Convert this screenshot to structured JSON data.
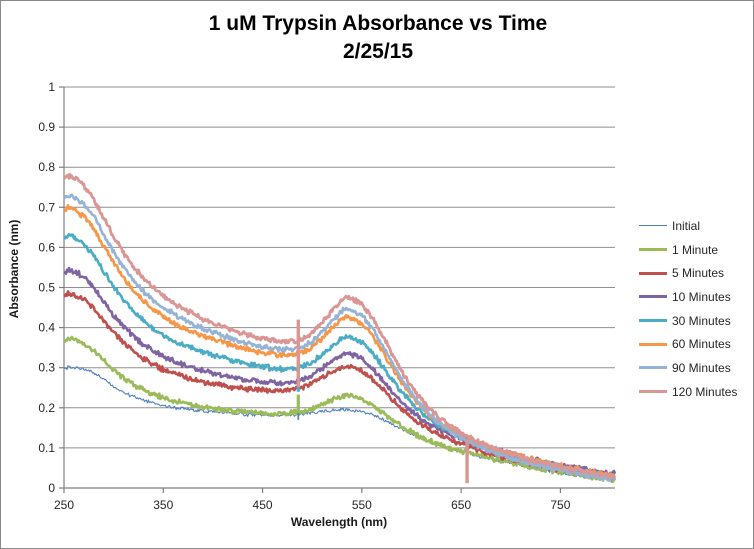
{
  "title": {
    "line1": "1 uM Trypsin Absorbance vs Time",
    "line2": "2/25/15"
  },
  "chart_data": {
    "type": "line",
    "title": "1 uM Trypsin Absorbance vs Time 2/25/15",
    "xlabel": "Wavelength (nm)",
    "ylabel": "Absorbance (nm)",
    "xlim": [
      250,
      805
    ],
    "ylim": [
      0,
      1
    ],
    "grid": "horizontal",
    "legend_position": "right",
    "x_ticks": {
      "values": [
        250,
        350,
        450,
        550,
        650,
        750
      ],
      "labels": [
        "250",
        "350",
        "450",
        "550",
        "650",
        "750"
      ]
    },
    "y_ticks": {
      "values": [
        0,
        0.1,
        0.2,
        0.3,
        0.4,
        0.5,
        0.6,
        0.7,
        0.8,
        0.9,
        1
      ],
      "labels": [
        "0",
        "0.1",
        "0.2",
        "0.3",
        "0.4",
        "0.5",
        "0.6",
        "0.7",
        "0.8",
        "0.9",
        "1"
      ]
    },
    "wavelengths": [
      250,
      255,
      260,
      270,
      280,
      290,
      300,
      310,
      320,
      330,
      340,
      350,
      360,
      370,
      380,
      390,
      400,
      410,
      420,
      430,
      440,
      450,
      460,
      470,
      480,
      490,
      500,
      510,
      520,
      530,
      535,
      540,
      550,
      560,
      570,
      580,
      590,
      600,
      610,
      620,
      630,
      640,
      650,
      660,
      670,
      680,
      690,
      700,
      710,
      720,
      730,
      740,
      750,
      760,
      770,
      780,
      790,
      800,
      805
    ],
    "series": [
      {
        "name": "Initial",
        "color": "#4F81BD",
        "width": 1.1,
        "noise": 0.0035,
        "values": [
          0.298,
          0.301,
          0.3,
          0.297,
          0.289,
          0.271,
          0.252,
          0.238,
          0.227,
          0.218,
          0.211,
          0.205,
          0.201,
          0.198,
          0.195,
          0.192,
          0.19,
          0.188,
          0.186,
          0.184,
          0.183,
          0.182,
          0.181,
          0.181,
          0.182,
          0.184,
          0.187,
          0.19,
          0.193,
          0.195,
          0.195,
          0.194,
          0.19,
          0.183,
          0.172,
          0.16,
          0.147,
          0.135,
          0.124,
          0.114,
          0.105,
          0.097,
          0.09,
          0.084,
          0.078,
          0.072,
          0.066,
          0.061,
          0.056,
          0.051,
          0.046,
          0.042,
          0.038,
          0.034,
          0.03,
          0.027,
          0.024,
          0.021,
          0.02
        ]
      },
      {
        "name": "1 Minute",
        "color": "#9BBB59",
        "width": 2.6,
        "noise": 0.005,
        "values": [
          0.368,
          0.374,
          0.371,
          0.361,
          0.343,
          0.317,
          0.294,
          0.274,
          0.258,
          0.245,
          0.234,
          0.225,
          0.217,
          0.211,
          0.206,
          0.202,
          0.198,
          0.195,
          0.192,
          0.19,
          0.188,
          0.187,
          0.186,
          0.186,
          0.187,
          0.19,
          0.197,
          0.207,
          0.219,
          0.229,
          0.232,
          0.231,
          0.222,
          0.207,
          0.189,
          0.171,
          0.154,
          0.139,
          0.126,
          0.115,
          0.106,
          0.098,
          0.092,
          0.086,
          0.08,
          0.074,
          0.068,
          0.063,
          0.058,
          0.053,
          0.048,
          0.044,
          0.04,
          0.036,
          0.032,
          0.028,
          0.025,
          0.022,
          0.021
        ]
      },
      {
        "name": "5 Minutes",
        "color": "#C0504D",
        "width": 2.6,
        "noise": 0.005,
        "values": [
          0.478,
          0.486,
          0.482,
          0.469,
          0.447,
          0.416,
          0.387,
          0.362,
          0.341,
          0.323,
          0.308,
          0.296,
          0.286,
          0.278,
          0.271,
          0.265,
          0.26,
          0.255,
          0.251,
          0.248,
          0.246,
          0.244,
          0.243,
          0.243,
          0.246,
          0.252,
          0.262,
          0.276,
          0.291,
          0.302,
          0.304,
          0.302,
          0.292,
          0.273,
          0.249,
          0.222,
          0.197,
          0.176,
          0.158,
          0.143,
          0.13,
          0.119,
          0.11,
          0.101,
          0.093,
          0.086,
          0.079,
          0.073,
          0.067,
          0.061,
          0.056,
          0.051,
          0.047,
          0.042,
          0.038,
          0.034,
          0.03,
          0.026,
          0.025
        ]
      },
      {
        "name": "10 Minutes",
        "color": "#8064A2",
        "width": 2.6,
        "noise": 0.005,
        "values": [
          0.538,
          0.545,
          0.541,
          0.527,
          0.501,
          0.464,
          0.431,
          0.403,
          0.378,
          0.358,
          0.342,
          0.328,
          0.317,
          0.307,
          0.299,
          0.292,
          0.286,
          0.28,
          0.275,
          0.271,
          0.268,
          0.265,
          0.263,
          0.263,
          0.265,
          0.271,
          0.282,
          0.298,
          0.317,
          0.332,
          0.335,
          0.333,
          0.322,
          0.3,
          0.272,
          0.241,
          0.214,
          0.191,
          0.172,
          0.157,
          0.144,
          0.133,
          0.124,
          0.115,
          0.107,
          0.1,
          0.093,
          0.086,
          0.08,
          0.074,
          0.068,
          0.063,
          0.058,
          0.053,
          0.048,
          0.044,
          0.04,
          0.036,
          0.035
        ]
      },
      {
        "name": "30 Minutes",
        "color": "#4BACC6",
        "width": 2.6,
        "noise": 0.005,
        "values": [
          0.622,
          0.629,
          0.625,
          0.609,
          0.58,
          0.54,
          0.502,
          0.469,
          0.441,
          0.417,
          0.398,
          0.382,
          0.368,
          0.357,
          0.347,
          0.339,
          0.331,
          0.324,
          0.318,
          0.312,
          0.307,
          0.302,
          0.299,
          0.297,
          0.298,
          0.303,
          0.314,
          0.332,
          0.354,
          0.373,
          0.377,
          0.375,
          0.363,
          0.339,
          0.307,
          0.272,
          0.239,
          0.211,
          0.188,
          0.168,
          0.152,
          0.138,
          0.126,
          0.115,
          0.105,
          0.096,
          0.088,
          0.081,
          0.074,
          0.068,
          0.062,
          0.057,
          0.052,
          0.047,
          0.042,
          0.038,
          0.034,
          0.029,
          0.028
        ]
      },
      {
        "name": "60 Minutes",
        "color": "#F79646",
        "width": 2.6,
        "noise": 0.005,
        "values": [
          0.692,
          0.699,
          0.694,
          0.678,
          0.648,
          0.603,
          0.561,
          0.524,
          0.493,
          0.467,
          0.446,
          0.428,
          0.413,
          0.4,
          0.389,
          0.379,
          0.371,
          0.363,
          0.356,
          0.349,
          0.343,
          0.338,
          0.334,
          0.332,
          0.333,
          0.339,
          0.352,
          0.374,
          0.4,
          0.421,
          0.426,
          0.424,
          0.41,
          0.382,
          0.344,
          0.303,
          0.264,
          0.23,
          0.201,
          0.177,
          0.159,
          0.145,
          0.132,
          0.12,
          0.11,
          0.101,
          0.093,
          0.085,
          0.078,
          0.072,
          0.066,
          0.06,
          0.055,
          0.05,
          0.045,
          0.04,
          0.036,
          0.031,
          0.03
        ]
      },
      {
        "name": "90 Minutes",
        "color": "#95B3D7",
        "width": 2.6,
        "noise": 0.005,
        "values": [
          0.722,
          0.73,
          0.725,
          0.709,
          0.678,
          0.632,
          0.588,
          0.55,
          0.518,
          0.491,
          0.469,
          0.45,
          0.434,
          0.42,
          0.408,
          0.397,
          0.388,
          0.379,
          0.371,
          0.364,
          0.358,
          0.352,
          0.348,
          0.345,
          0.346,
          0.352,
          0.366,
          0.389,
          0.417,
          0.442,
          0.448,
          0.445,
          0.43,
          0.4,
          0.36,
          0.316,
          0.273,
          0.236,
          0.204,
          0.178,
          0.157,
          0.141,
          0.126,
          0.113,
          0.102,
          0.092,
          0.083,
          0.075,
          0.068,
          0.061,
          0.055,
          0.049,
          0.044,
          0.039,
          0.034,
          0.03,
          0.026,
          0.022,
          0.021
        ]
      },
      {
        "name": "120 Minutes",
        "color": "#D99694",
        "width": 2.8,
        "noise": 0.005,
        "values": [
          0.772,
          0.779,
          0.774,
          0.755,
          0.721,
          0.673,
          0.627,
          0.587,
          0.552,
          0.523,
          0.499,
          0.479,
          0.462,
          0.447,
          0.434,
          0.422,
          0.412,
          0.402,
          0.394,
          0.386,
          0.379,
          0.373,
          0.368,
          0.365,
          0.366,
          0.372,
          0.387,
          0.412,
          0.442,
          0.468,
          0.475,
          0.472,
          0.457,
          0.425,
          0.383,
          0.337,
          0.292,
          0.253,
          0.22,
          0.192,
          0.17,
          0.152,
          0.137,
          0.123,
          0.112,
          0.102,
          0.093,
          0.085,
          0.078,
          0.071,
          0.065,
          0.059,
          0.054,
          0.048,
          0.043,
          0.038,
          0.034,
          0.029,
          0.028
        ]
      }
    ],
    "artifact_spikes": [
      {
        "series": "Initial",
        "x": 486,
        "y_from": 0.17,
        "y_to": 0.194
      },
      {
        "series": "1 Minute",
        "x": 486,
        "y_from": 0.187,
        "y_to": 0.233
      },
      {
        "series": "30 Minutes",
        "x": 486,
        "y_from": 0.24,
        "y_to": 0.3
      },
      {
        "series": "120 Minutes",
        "x": 486,
        "y_from": 0.252,
        "y_to": 0.42
      },
      {
        "series": "120 Minutes",
        "x": 656,
        "y_from": 0.012,
        "y_to": 0.122
      }
    ],
    "colors": {
      "gridline": "#8f8f8f",
      "axis": "#7f7f7f",
      "tick_text": "#262626",
      "frame_border": "#8a8a8a"
    }
  }
}
